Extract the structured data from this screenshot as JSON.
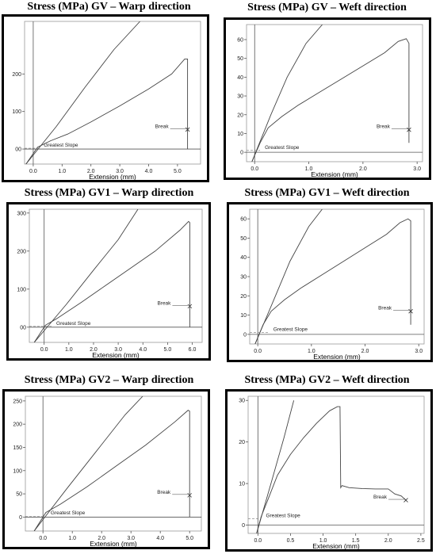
{
  "chart_data": [
    {
      "type": "line",
      "title": "Stress (MPa) GV – Warp direction",
      "xlabel": "Extension (mm)",
      "xlim": [
        -0.3,
        5.8
      ],
      "ylim": [
        -40,
        340
      ],
      "xticks": [
        0,
        1,
        2,
        3,
        4,
        5
      ],
      "xtick_labels": [
        "0.0",
        "1.0",
        "2.0",
        "3.0",
        "4.0",
        "5.0"
      ],
      "yticks": [
        0,
        100,
        200
      ],
      "ytick_labels": [
        "00",
        "100",
        "200"
      ],
      "series": [
        {
          "x": [
            -0.25,
            0.15,
            0.6,
            1.2,
            2.0,
            3.0,
            4.0,
            4.8,
            5.25,
            5.35,
            5.35
          ],
          "y": [
            -40,
            5,
            22,
            40,
            72,
            115,
            160,
            200,
            240,
            240,
            0
          ]
        },
        {
          "x": [
            -0.25,
            0.8,
            1.8,
            2.8,
            3.7
          ],
          "y": [
            -40,
            60,
            165,
            265,
            340
          ]
        }
      ],
      "annotations": [
        {
          "text": "Break",
          "x": 5.35,
          "y": 52
        },
        {
          "text": "Greatest Slope",
          "x": 0.2,
          "y": 2
        }
      ]
    },
    {
      "type": "line",
      "title": "Stress (MPa) GV – Weft direction",
      "xlabel": "Extension (mm)",
      "xlim": [
        -0.15,
        3.1
      ],
      "ylim": [
        -5,
        68
      ],
      "xticks": [
        0,
        1,
        2,
        3
      ],
      "xtick_labels": [
        "0.0",
        "1.0",
        "2.0",
        "3.0"
      ],
      "yticks": [
        0,
        10,
        20,
        30,
        40,
        50,
        60
      ],
      "ytick_labels": [
        "0",
        "10",
        "20",
        "30",
        "40",
        "50",
        "60"
      ],
      "series": [
        {
          "x": [
            -0.05,
            0.1,
            0.25,
            0.5,
            0.8,
            1.2,
            1.6,
            2.0,
            2.4,
            2.65,
            2.8,
            2.85,
            2.85
          ],
          "y": [
            -5,
            5,
            13,
            19,
            25,
            32,
            39,
            46,
            53,
            59,
            60.5,
            58,
            5
          ]
        },
        {
          "x": [
            -0.05,
            0.3,
            0.6,
            0.95,
            1.25
          ],
          "y": [
            -5,
            20,
            40,
            58,
            68
          ]
        }
      ],
      "annotations": [
        {
          "text": "Break",
          "x": 2.85,
          "y": 12
        },
        {
          "text": "Greatest Slope",
          "x": 0.1,
          "y": 1
        }
      ]
    },
    {
      "type": "line",
      "title": "Stress (MPa) GV1 – Warp direction",
      "xlabel": "Extension (mm)",
      "xlim": [
        -0.6,
        6.4
      ],
      "ylim": [
        -40,
        310
      ],
      "xticks": [
        0,
        1,
        2,
        3,
        4,
        5,
        6
      ],
      "xtick_labels": [
        "0.0",
        "1.0",
        "2.0",
        "3.0",
        "4.0",
        "5.0",
        "6.0"
      ],
      "yticks": [
        0,
        100,
        200,
        300
      ],
      "ytick_labels": [
        "00",
        "100",
        "200",
        "300"
      ],
      "series": [
        {
          "x": [
            -0.4,
            0.05,
            0.5,
            1.5,
            2.5,
            3.5,
            4.5,
            5.5,
            5.85,
            5.9,
            5.9
          ],
          "y": [
            -40,
            5,
            22,
            65,
            110,
            155,
            200,
            255,
            278,
            275,
            0
          ]
        },
        {
          "x": [
            -0.4,
            0.9,
            2.0,
            3.0,
            3.8
          ],
          "y": [
            -40,
            60,
            150,
            230,
            310
          ]
        }
      ],
      "annotations": [
        {
          "text": "Break",
          "x": 5.9,
          "y": 55
        },
        {
          "text": "Greatest Slope",
          "x": 0.3,
          "y": 2
        }
      ]
    },
    {
      "type": "line",
      "title": "Stress (MPa) GV1 – Weft direction",
      "xlabel": "Extension (mm)",
      "xlim": [
        -0.15,
        3.1
      ],
      "ylim": [
        -5,
        65
      ],
      "xticks": [
        0,
        1,
        2,
        3
      ],
      "xtick_labels": [
        "0.0",
        "1.0",
        "2.0",
        "3.0"
      ],
      "yticks": [
        0,
        10,
        20,
        30,
        40,
        50,
        60
      ],
      "ytick_labels": [
        "0",
        "10",
        "20",
        "30",
        "40",
        "50",
        "60"
      ],
      "series": [
        {
          "x": [
            -0.05,
            0.1,
            0.25,
            0.5,
            0.8,
            1.2,
            1.6,
            2.0,
            2.4,
            2.65,
            2.8,
            2.85,
            2.85
          ],
          "y": [
            -5,
            5,
            12,
            18,
            24,
            31,
            38,
            45,
            52,
            58,
            60,
            59,
            5
          ]
        },
        {
          "x": [
            -0.05,
            0.3,
            0.6,
            0.95,
            1.2
          ],
          "y": [
            -5,
            18,
            38,
            56,
            65
          ]
        }
      ],
      "annotations": [
        {
          "text": "Break",
          "x": 2.85,
          "y": 12
        },
        {
          "text": "Greatest Slope",
          "x": 0.2,
          "y": 1
        }
      ]
    },
    {
      "type": "line",
      "title": "Stress (MPa) GV2 – Warp direction",
      "xlabel": "Extension (mm)",
      "xlim": [
        -0.6,
        5.4
      ],
      "ylim": [
        -30,
        260
      ],
      "xticks": [
        0,
        1,
        2,
        3,
        4,
        5
      ],
      "xtick_labels": [
        "0.0",
        "1.0",
        "2.0",
        "3.0",
        "4.0",
        "5.0"
      ],
      "yticks": [
        0,
        50,
        100,
        150,
        200,
        250
      ],
      "ytick_labels": [
        "0",
        "50",
        "100",
        "150",
        "200",
        "250"
      ],
      "series": [
        {
          "x": [
            -0.3,
            0.1,
            0.6,
            1.5,
            2.5,
            3.5,
            4.5,
            4.95,
            5.0,
            5.0
          ],
          "y": [
            -30,
            10,
            28,
            65,
            110,
            155,
            205,
            230,
            228,
            0
          ]
        },
        {
          "x": [
            -0.3,
            0.8,
            1.8,
            2.8,
            3.4
          ],
          "y": [
            -30,
            60,
            140,
            220,
            260
          ]
        }
      ],
      "annotations": [
        {
          "text": "Break",
          "x": 5.0,
          "y": 47
        },
        {
          "text": "Greatest Slope",
          "x": 0.1,
          "y": 2
        }
      ]
    },
    {
      "type": "line",
      "title": "Stress (MPa) GV2 – Weft direction",
      "xlabel": "Extension (mm)",
      "xlim": [
        -0.15,
        2.55
      ],
      "ylim": [
        -2,
        31
      ],
      "xticks": [
        0,
        0.5,
        1.0,
        1.5,
        2.0,
        2.5
      ],
      "xtick_labels": [
        "0.0",
        "0.5",
        "1.0",
        "1.5",
        "2.0",
        "2.5"
      ],
      "yticks": [
        0,
        10,
        20,
        30
      ],
      "ytick_labels": [
        "0",
        "10",
        "20",
        "30"
      ],
      "series": [
        {
          "x": [
            -0.02,
            0.05,
            0.15,
            0.3,
            0.5,
            0.7,
            0.9,
            1.1,
            1.22,
            1.26,
            1.27,
            1.29,
            1.4,
            1.6,
            1.8,
            2.0,
            2.1,
            2.2,
            2.27
          ],
          "y": [
            -2,
            2,
            6,
            12,
            17,
            21,
            24.5,
            27.5,
            28.5,
            28.5,
            9,
            9.5,
            9,
            8.8,
            8.7,
            8.7,
            7.5,
            7,
            6
          ]
        },
        {
          "x": [
            -0.02,
            0.2,
            0.4,
            0.55
          ],
          "y": [
            -2,
            10,
            21,
            30
          ]
        }
      ],
      "annotations": [
        {
          "text": "Break",
          "x": 2.27,
          "y": 6
        },
        {
          "text": "Greatest Slope",
          "x": 0.05,
          "y": 1.5
        }
      ]
    }
  ]
}
